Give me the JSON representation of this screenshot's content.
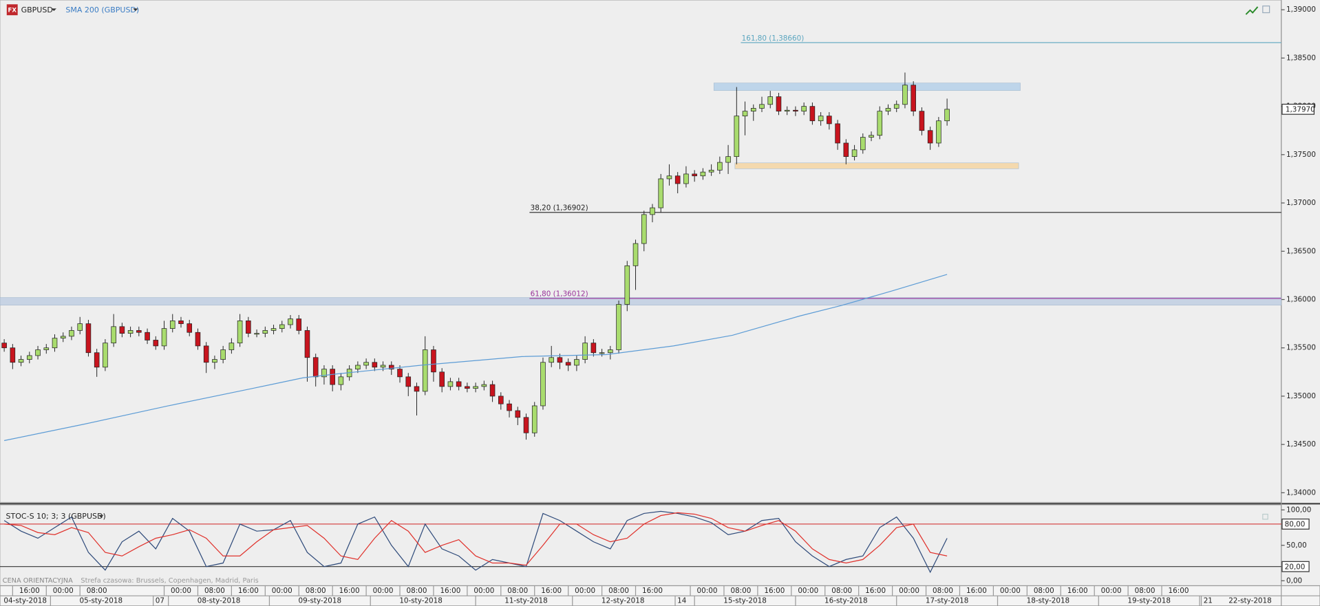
{
  "chart_data": [
    {
      "type": "candlestick",
      "title": "GBPUSD",
      "x": [
        1,
        3,
        5,
        7,
        9,
        11,
        13,
        15,
        17,
        19,
        21,
        23,
        25,
        27,
        29,
        31,
        33,
        35,
        37,
        39,
        41,
        43,
        45,
        47,
        49,
        51,
        53,
        55,
        57,
        59,
        61,
        63,
        65,
        67,
        69,
        71,
        73,
        75,
        77,
        79,
        81,
        83,
        85,
        87,
        89,
        91,
        93,
        95,
        97,
        99,
        101,
        103,
        105,
        107,
        109,
        111,
        113,
        115,
        117,
        119,
        121,
        123,
        125,
        127,
        129,
        131,
        133,
        135,
        137,
        139,
        141,
        143,
        145,
        147,
        149,
        151,
        153,
        155,
        157,
        159,
        161,
        163,
        165,
        167,
        169,
        171,
        173,
        175,
        177,
        179,
        181,
        183,
        185,
        187,
        189,
        191,
        193,
        195,
        197,
        199,
        201,
        203,
        205,
        207,
        209,
        211,
        213,
        215,
        217,
        219,
        221,
        223,
        225
      ],
      "open": [
        1.3555,
        1.355,
        1.3535,
        1.3538,
        1.3542,
        1.3548,
        1.355,
        1.356,
        1.3562,
        1.3568,
        1.3575,
        1.3545,
        1.353,
        1.3555,
        1.3572,
        1.3565,
        1.3568,
        1.3566,
        1.3558,
        1.3552,
        1.357,
        1.3578,
        1.3575,
        1.3566,
        1.3552,
        1.3535,
        1.3538,
        1.3548,
        1.3555,
        1.3578,
        1.3565,
        1.3565,
        1.3568,
        1.357,
        1.3574,
        1.358,
        1.3568,
        1.354,
        1.352,
        1.3528,
        1.3512,
        1.352,
        1.3528,
        1.3532,
        1.3535,
        1.353,
        1.3532,
        1.3528,
        1.352,
        1.351,
        1.3505,
        1.3548,
        1.3525,
        1.351,
        1.3515,
        1.351,
        1.3508,
        1.351,
        1.3512,
        1.35,
        1.3492,
        1.3485,
        1.3478,
        1.3462,
        1.349,
        1.3535,
        1.354,
        1.3535,
        1.3532,
        1.3538,
        1.3555,
        1.3545,
        1.3545,
        1.3548,
        1.3595,
        1.3635,
        1.3658,
        1.3688,
        1.3695,
        1.3725,
        1.3728,
        1.372,
        1.373,
        1.3728,
        1.3732,
        1.3734,
        1.3742,
        1.3748,
        1.379,
        1.3795,
        1.3798,
        1.3802,
        1.381,
        1.3795,
        1.3796,
        1.3795,
        1.38,
        1.3785,
        1.379,
        1.3782,
        1.3762,
        1.3748,
        1.3755,
        1.3768,
        1.377,
        1.3795,
        1.3798,
        1.3802,
        1.3822,
        1.3795,
        1.3775,
        1.3762,
        1.3785
      ],
      "high": [
        1.3559,
        1.3554,
        1.3542,
        1.3546,
        1.3552,
        1.3554,
        1.3564,
        1.3566,
        1.3572,
        1.3582,
        1.3579,
        1.3549,
        1.3559,
        1.3585,
        1.3576,
        1.3572,
        1.3572,
        1.357,
        1.3562,
        1.3578,
        1.3585,
        1.3582,
        1.3579,
        1.357,
        1.3556,
        1.3542,
        1.3552,
        1.356,
        1.3585,
        1.3582,
        1.3569,
        1.3572,
        1.3574,
        1.3578,
        1.3584,
        1.3584,
        1.3572,
        1.3544,
        1.3532,
        1.3532,
        1.3524,
        1.3532,
        1.3536,
        1.3539,
        1.3539,
        1.3536,
        1.3536,
        1.3532,
        1.3524,
        1.3514,
        1.3562,
        1.3552,
        1.3529,
        1.3519,
        1.3519,
        1.3514,
        1.3514,
        1.3516,
        1.3516,
        1.3504,
        1.3496,
        1.3489,
        1.3482,
        1.3494,
        1.354,
        1.3552,
        1.3544,
        1.3539,
        1.3542,
        1.3562,
        1.3559,
        1.3549,
        1.3552,
        1.3599,
        1.364,
        1.3662,
        1.3692,
        1.3699,
        1.373,
        1.374,
        1.3732,
        1.3738,
        1.3734,
        1.3736,
        1.374,
        1.3748,
        1.376,
        1.382,
        1.3805,
        1.3802,
        1.381,
        1.3816,
        1.3814,
        1.38,
        1.38,
        1.3804,
        1.3804,
        1.3794,
        1.3794,
        1.3786,
        1.3766,
        1.376,
        1.3772,
        1.3774,
        1.38,
        1.3802,
        1.3806,
        1.3835,
        1.3826,
        1.3799,
        1.3779,
        1.3789,
        1.3808
      ],
      "low": [
        1.3546,
        1.3528,
        1.3531,
        1.3534,
        1.3538,
        1.3544,
        1.3546,
        1.3556,
        1.3558,
        1.3564,
        1.3541,
        1.352,
        1.3526,
        1.3551,
        1.3561,
        1.3561,
        1.3562,
        1.3554,
        1.3548,
        1.3548,
        1.3566,
        1.3571,
        1.3562,
        1.3548,
        1.3524,
        1.3528,
        1.3534,
        1.3544,
        1.3551,
        1.3561,
        1.3561,
        1.3561,
        1.3564,
        1.3566,
        1.357,
        1.3564,
        1.3515,
        1.351,
        1.3512,
        1.3505,
        1.3506,
        1.3516,
        1.3524,
        1.3528,
        1.3526,
        1.3526,
        1.3522,
        1.3514,
        1.35,
        1.348,
        1.3501,
        1.3515,
        1.3504,
        1.3506,
        1.3506,
        1.3504,
        1.3504,
        1.3506,
        1.3494,
        1.3486,
        1.3478,
        1.347,
        1.3455,
        1.3458,
        1.3486,
        1.353,
        1.3528,
        1.3526,
        1.3526,
        1.3534,
        1.3541,
        1.3541,
        1.3538,
        1.3544,
        1.3588,
        1.361,
        1.365,
        1.368,
        1.369,
        1.3718,
        1.371,
        1.3716,
        1.3722,
        1.3724,
        1.3728,
        1.373,
        1.373,
        1.374,
        1.377,
        1.3785,
        1.3794,
        1.3798,
        1.3791,
        1.3791,
        1.379,
        1.3791,
        1.3781,
        1.378,
        1.3776,
        1.3755,
        1.374,
        1.3744,
        1.3751,
        1.3764,
        1.3766,
        1.3791,
        1.3794,
        1.3798,
        1.379,
        1.377,
        1.3755,
        1.3758,
        1.378
      ],
      "close": [
        1.355,
        1.3535,
        1.3538,
        1.3542,
        1.3548,
        1.355,
        1.356,
        1.3562,
        1.3568,
        1.3575,
        1.3545,
        1.353,
        1.3555,
        1.3572,
        1.3565,
        1.3568,
        1.3566,
        1.3558,
        1.3552,
        1.357,
        1.3578,
        1.3575,
        1.3566,
        1.3552,
        1.3535,
        1.3538,
        1.3548,
        1.3555,
        1.3578,
        1.3565,
        1.3565,
        1.3568,
        1.357,
        1.3574,
        1.358,
        1.3568,
        1.354,
        1.352,
        1.3528,
        1.3512,
        1.352,
        1.3528,
        1.3532,
        1.3535,
        1.353,
        1.3532,
        1.3528,
        1.352,
        1.351,
        1.3505,
        1.3548,
        1.3525,
        1.351,
        1.3515,
        1.351,
        1.3508,
        1.351,
        1.3512,
        1.35,
        1.3492,
        1.3485,
        1.3478,
        1.3462,
        1.349,
        1.3535,
        1.354,
        1.3535,
        1.3532,
        1.3538,
        1.3555,
        1.3545,
        1.3545,
        1.3548,
        1.3595,
        1.3635,
        1.3658,
        1.3688,
        1.3695,
        1.3725,
        1.3728,
        1.372,
        1.373,
        1.3728,
        1.3732,
        1.3734,
        1.3742,
        1.3748,
        1.379,
        1.3795,
        1.3798,
        1.3802,
        1.381,
        1.3795,
        1.3796,
        1.3795,
        1.38,
        1.3785,
        1.379,
        1.3782,
        1.3762,
        1.3748,
        1.3755,
        1.3768,
        1.377,
        1.3795,
        1.3798,
        1.3802,
        1.3822,
        1.3795,
        1.3775,
        1.3762,
        1.3785,
        1.3797
      ],
      "color_up": "#a9dc6e",
      "color_down": "#c8141e",
      "series": [
        {
          "name": "SMA 200 (GBPUSD)",
          "color": "#5b9bd5",
          "x": [
            1,
            20,
            40,
            60,
            72,
            80,
            100,
            124,
            144,
            160,
            174,
            190,
            200,
            212,
            225
          ],
          "values": [
            1.3454,
            1.3471,
            1.349,
            1.3508,
            1.3519,
            1.3523,
            1.3532,
            1.3541,
            1.3543,
            1.3552,
            1.3563,
            1.3583,
            1.3594,
            1.3609,
            1.3626
          ]
        }
      ],
      "levels": [
        {
          "label": "161,80 (1,38660)",
          "value": 1.3866,
          "x": 176,
          "color": "#5aa5bf"
        },
        {
          "label": "38,20 (1,36902)",
          "value": 1.36902,
          "x": 125.8,
          "color": "#222222"
        },
        {
          "label": "61,80 (1,36012)",
          "value": 1.36012,
          "x": 125.8,
          "color": "#993399"
        }
      ],
      "zones": [
        {
          "x": [
            169.6,
            242.4
          ],
          "y": [
            1.38164,
            1.38242
          ],
          "color": "#b9d3ea"
        },
        {
          "x": [
            174.6,
            242
          ],
          "y": [
            1.37354,
            1.37415
          ],
          "color": "#f5d7a8"
        },
        {
          "x": [
            0,
            304.4
          ],
          "y": [
            1.35942,
            1.36021
          ],
          "color": "#c3d1e3"
        }
      ],
      "last_price": {
        "value": 1.3797,
        "label": "1,37970"
      },
      "xlim": [
        0,
        304.4
      ],
      "ylim": [
        1.339,
        1.391
      ],
      "yticks": [
        {
          "value": 1.39,
          "label": "1,39000"
        },
        {
          "value": 1.385,
          "label": "1,38500"
        },
        {
          "value": 1.38,
          "label": "1,38000"
        },
        {
          "value": 1.375,
          "label": "1,37500"
        },
        {
          "value": 1.37,
          "label": "1,37000"
        },
        {
          "value": 1.365,
          "label": "1,36500"
        },
        {
          "value": 1.36,
          "label": "1,36000"
        },
        {
          "value": 1.355,
          "label": "1,35500"
        },
        {
          "value": 1.35,
          "label": "1,35000"
        },
        {
          "value": 1.345,
          "label": "1,34500"
        },
        {
          "value": 1.34,
          "label": "1,34000"
        }
      ]
    },
    {
      "type": "line",
      "title": "STOC-S 10; 3; 3 (GBPUSD)",
      "x": [
        1,
        5,
        9,
        13,
        17,
        21,
        25,
        29,
        33,
        37,
        41,
        45,
        49,
        53,
        57,
        61,
        65,
        69,
        73,
        77,
        81,
        85,
        89,
        93,
        97,
        101,
        105,
        109,
        113,
        117,
        121,
        125,
        129,
        133,
        137,
        141,
        145,
        149,
        153,
        157,
        161,
        165,
        169,
        173,
        177,
        181,
        185,
        189,
        193,
        197,
        201,
        205,
        209,
        213,
        217,
        221,
        225
      ],
      "series": [
        {
          "color": "#2e4a7a",
          "values": [
            85,
            70,
            60,
            75,
            90,
            40,
            15,
            55,
            70,
            45,
            88,
            70,
            20,
            25,
            80,
            70,
            72,
            85,
            40,
            20,
            25,
            80,
            90,
            50,
            20,
            80,
            45,
            35,
            15,
            30,
            25,
            20,
            95,
            85,
            70,
            55,
            45,
            85,
            95,
            98,
            95,
            90,
            82,
            65,
            70,
            85,
            88,
            55,
            35,
            20,
            30,
            35,
            75,
            90,
            60,
            12,
            60
          ]
        },
        {
          "color": "#e0302a",
          "values": [
            80,
            78,
            68,
            65,
            75,
            68,
            40,
            35,
            48,
            60,
            65,
            72,
            60,
            35,
            35,
            55,
            72,
            75,
            78,
            60,
            35,
            30,
            60,
            85,
            70,
            40,
            50,
            58,
            35,
            25,
            25,
            22,
            50,
            80,
            80,
            65,
            55,
            60,
            80,
            92,
            96,
            94,
            88,
            75,
            70,
            78,
            85,
            70,
            45,
            30,
            25,
            30,
            50,
            75,
            80,
            40,
            35
          ]
        }
      ],
      "levels": [
        {
          "value": 80,
          "label": "80,00",
          "color": "#d02020"
        },
        {
          "value": 20,
          "label": "20,00",
          "color": "#333333"
        }
      ],
      "xlim": [
        0,
        304.4
      ],
      "ylim": [
        -7,
        107
      ],
      "yticks": [
        {
          "value": 100,
          "label": "100,00"
        },
        {
          "value": 50,
          "label": "50,00"
        },
        {
          "value": 0,
          "label": "0,00"
        }
      ],
      "xticks": [
        {
          "value": 7,
          "label": "16:00"
        },
        {
          "value": 15,
          "label": "00:00"
        },
        {
          "value": 23,
          "label": "08:00"
        },
        {
          "value": 43,
          "label": "00:00"
        },
        {
          "value": 51,
          "label": "08:00"
        },
        {
          "value": 59,
          "label": "16:00"
        },
        {
          "value": 67,
          "label": "00:00"
        },
        {
          "value": 75,
          "label": "08:00"
        },
        {
          "value": 83,
          "label": "16:00"
        },
        {
          "value": 91,
          "label": "00:00"
        },
        {
          "value": 99,
          "label": "08:00"
        },
        {
          "value": 107,
          "label": "16:00"
        },
        {
          "value": 115,
          "label": "00:00"
        },
        {
          "value": 123,
          "label": "08:00"
        },
        {
          "value": 131,
          "label": "16:00"
        },
        {
          "value": 139,
          "label": "00:00"
        },
        {
          "value": 147,
          "label": "08:00"
        },
        {
          "value": 155,
          "label": "16:00"
        },
        {
          "value": 168,
          "label": "00:00"
        },
        {
          "value": 176,
          "label": "08:00"
        },
        {
          "value": 184,
          "label": "16:00"
        },
        {
          "value": 192,
          "label": "00:00"
        },
        {
          "value": 200,
          "label": "08:00"
        },
        {
          "value": 208,
          "label": "16:00"
        },
        {
          "value": 216,
          "label": "00:00"
        },
        {
          "value": 224,
          "label": "08:00"
        },
        {
          "value": 232,
          "label": "16:00"
        },
        {
          "value": 240,
          "label": "00:00"
        },
        {
          "value": 248,
          "label": "08:00"
        },
        {
          "value": 256,
          "label": "16:00"
        },
        {
          "value": 264,
          "label": "00:00"
        },
        {
          "value": 272,
          "label": "08:00"
        },
        {
          "value": 280,
          "label": "16:00"
        }
      ],
      "date_ticks": [
        {
          "value": 6,
          "label": "04-sty-2018"
        },
        {
          "value": 24,
          "label": "05-sty-2018"
        },
        {
          "value": 38,
          "label": "07"
        },
        {
          "value": 52,
          "label": "08-sty-2018"
        },
        {
          "value": 76,
          "label": "09-sty-2018"
        },
        {
          "value": 100,
          "label": "10-sty-2018"
        },
        {
          "value": 125,
          "label": "11-sty-2018"
        },
        {
          "value": 148,
          "label": "12-sty-2018"
        },
        {
          "value": 162,
          "label": "14"
        },
        {
          "value": 177,
          "label": "15-sty-2018"
        },
        {
          "value": 201,
          "label": "16-sty-2018"
        },
        {
          "value": 225,
          "label": "17-sty-2018"
        },
        {
          "value": 249,
          "label": "18-sty-2018"
        },
        {
          "value": 273,
          "label": "19-sty-2018"
        },
        {
          "value": 287,
          "label": "21"
        },
        {
          "value": 297,
          "label": "22-sty-2018"
        }
      ]
    }
  ],
  "footer": {
    "price_note": "CENA ORIENTACYJNA",
    "timezone": "Strefa czasowa: Brussels, Copenhagen, Madrid, Paris"
  }
}
